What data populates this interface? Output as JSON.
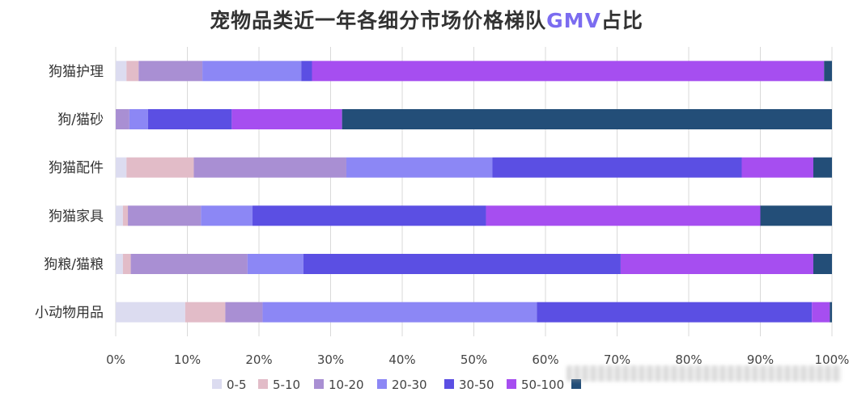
{
  "chart_data": {
    "type": "bar",
    "orientation": "horizontal",
    "stacked": true,
    "percent": true,
    "title_prefix": "宠物品类近一年各细分市场价格梯队",
    "title_highlight": "GMV",
    "title_suffix": "占比",
    "categories": [
      "狗猫护理",
      "狗/猫砂",
      "狗猫配件",
      "狗猫家具",
      "狗粮/猫粮",
      "小动物用品"
    ],
    "series": [
      {
        "name": "0-5",
        "color": "#dcdcf0",
        "values": [
          1.5,
          0.0,
          1.5,
          1.0,
          1.0,
          9.7
        ]
      },
      {
        "name": "5-10",
        "color": "#e2bcc8",
        "values": [
          1.7,
          0.0,
          9.4,
          0.7,
          1.1,
          5.6
        ]
      },
      {
        "name": "10-20",
        "color": "#a98fd3",
        "values": [
          8.9,
          1.9,
          21.3,
          10.2,
          16.3,
          5.2
        ]
      },
      {
        "name": "20-30",
        "color": "#8c87f5",
        "values": [
          13.8,
          2.6,
          20.4,
          7.2,
          7.8,
          38.3
        ]
      },
      {
        "name": "30-50",
        "color": "#5b4fe3",
        "values": [
          1.5,
          11.7,
          34.8,
          32.6,
          44.3,
          38.4
        ]
      },
      {
        "name": "50-100",
        "color": "#a64ef0",
        "values": [
          71.5,
          15.4,
          10.0,
          38.3,
          26.9,
          2.5
        ]
      },
      {
        "name": "",
        "color": "#234e78",
        "values": [
          1.1,
          68.4,
          2.6,
          10.0,
          2.6,
          0.3
        ]
      }
    ],
    "xlim": [
      0,
      100
    ],
    "xticks": [
      "0%",
      "10%",
      "20%",
      "30%",
      "40%",
      "50%",
      "60%",
      "70%",
      "80%",
      "90%",
      "100%"
    ],
    "grid": true,
    "legend_position": "bottom"
  }
}
